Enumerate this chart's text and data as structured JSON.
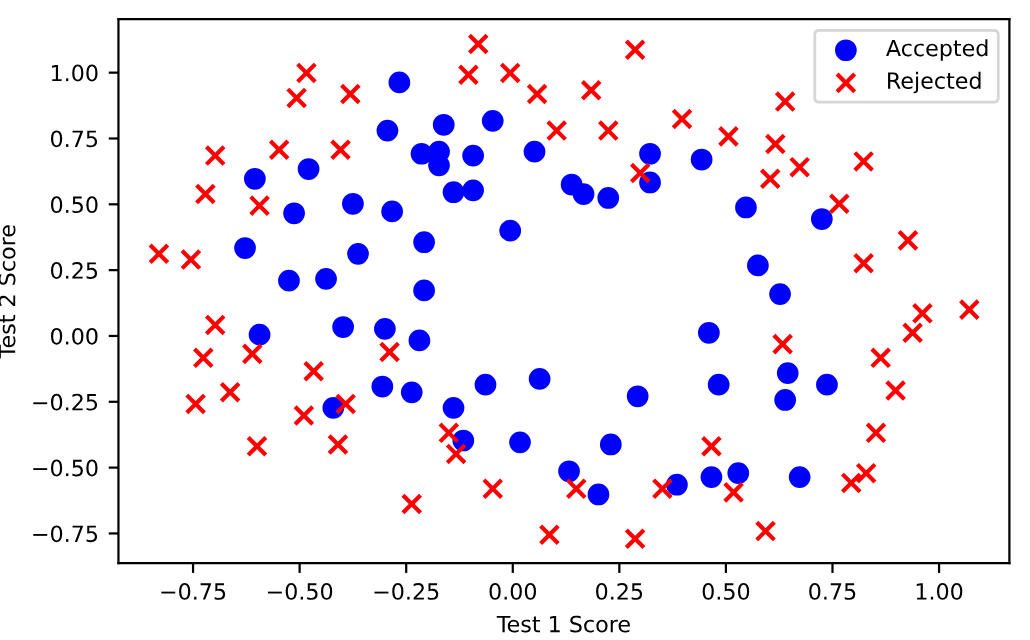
{
  "chart_data": {
    "type": "scatter",
    "xlabel": "Test 1 Score",
    "ylabel": "Test 2 Score",
    "legend": "top right",
    "grid": false,
    "xlim": [
      -0.925,
      1.165
    ],
    "ylim": [
      -0.863,
      1.203
    ],
    "xticks": [
      {
        "value": -0.75,
        "label": "−0.75"
      },
      {
        "value": -0.5,
        "label": "−0.50"
      },
      {
        "value": -0.25,
        "label": "−0.25"
      },
      {
        "value": 0,
        "label": "0.00"
      },
      {
        "value": 0.25,
        "label": "0.25"
      },
      {
        "value": 0.5,
        "label": "0.50"
      },
      {
        "value": 0.75,
        "label": "0.75"
      },
      {
        "value": 1,
        "label": "1.00"
      }
    ],
    "yticks": [
      {
        "value": -0.75,
        "label": "−0.75"
      },
      {
        "value": -0.5,
        "label": "−0.50"
      },
      {
        "value": -0.25,
        "label": "−0.25"
      },
      {
        "value": 0,
        "label": "0.00"
      },
      {
        "value": 0.25,
        "label": "0.25"
      },
      {
        "value": 0.5,
        "label": "0.50"
      },
      {
        "value": 0.75,
        "label": "0.75"
      },
      {
        "value": 1,
        "label": "1.00"
      }
    ],
    "series": [
      {
        "name": "Accepted",
        "color": "#0000ff",
        "marker": "circle",
        "x": [
          0.051,
          -0.093,
          -0.214,
          -0.375,
          -0.513,
          -0.525,
          -0.398,
          -0.306,
          0.017,
          0.132,
          0.385,
          0.529,
          0.639,
          0.737,
          0.547,
          0.322,
          0.166,
          -0.047,
          -0.173,
          -0.479,
          -0.605,
          -0.628,
          -0.594,
          -0.421,
          -0.116,
          0.201,
          0.466,
          0.673,
          -0.139,
          -0.294,
          -0.266,
          -0.162,
          -0.173,
          -0.283,
          -0.363,
          -0.3,
          -0.237,
          -0.064,
          0.063,
          0.23,
          0.293,
          0.483,
          0.645,
          0.46,
          0.627,
          0.575,
          0.725,
          0.224,
          0.443,
          0.322,
          0.138,
          -0.006,
          -0.093,
          -0.208,
          -0.208,
          -0.438,
          -0.219,
          -0.139
        ],
        "values": [
          0.7,
          0.685,
          0.692,
          0.502,
          0.466,
          0.21,
          0.034,
          -0.192,
          -0.404,
          -0.514,
          -0.565,
          -0.521,
          -0.243,
          -0.185,
          0.488,
          0.583,
          0.539,
          0.817,
          0.7,
          0.634,
          0.597,
          0.334,
          0.005,
          -0.273,
          -0.397,
          -0.602,
          -0.536,
          -0.536,
          0.546,
          0.78,
          0.963,
          0.802,
          0.648,
          0.473,
          0.312,
          0.027,
          -0.214,
          -0.185,
          -0.163,
          -0.412,
          -0.229,
          -0.185,
          -0.141,
          0.012,
          0.159,
          0.268,
          0.444,
          0.524,
          0.67,
          0.692,
          0.575,
          0.4,
          0.553,
          0.356,
          0.173,
          0.217,
          -0.017,
          -0.273
        ]
      },
      {
        "name": "Rejected",
        "color": "#ff0000",
        "marker": "cross",
        "x": [
          0.184,
          0.224,
          0.299,
          0.506,
          0.616,
          0.604,
          0.766,
          0.927,
          0.823,
          0.961,
          0.938,
          0.863,
          0.898,
          0.852,
          0.829,
          0.794,
          0.593,
          0.518,
          0.466,
          0.351,
          0.287,
          0.086,
          0.149,
          -0.133,
          -0.41,
          -0.392,
          -0.744,
          -0.698,
          -0.755,
          -0.698,
          -0.404,
          -0.381,
          -0.507,
          -0.548,
          0.103,
          0.057,
          -0.104,
          -0.081,
          0.287,
          0.397,
          0.639,
          0.823,
          0.673,
          1.071,
          -0.047,
          -0.237,
          -0.15,
          -0.49,
          -0.467,
          -0.289,
          -0.611,
          -0.663,
          -0.6,
          -0.726,
          -0.83,
          -0.721,
          -0.594,
          -0.484,
          -0.006,
          0.633
        ],
        "values": [
          0.933,
          0.78,
          0.619,
          0.758,
          0.729,
          0.597,
          0.502,
          0.363,
          0.276,
          0.086,
          0.012,
          -0.083,
          -0.207,
          -0.368,
          -0.521,
          -0.558,
          -0.741,
          -0.594,
          -0.419,
          -0.58,
          -0.77,
          -0.755,
          -0.58,
          -0.448,
          -0.412,
          -0.258,
          -0.258,
          0.042,
          0.29,
          0.685,
          0.707,
          0.919,
          0.904,
          0.707,
          0.78,
          0.919,
          0.992,
          1.109,
          1.087,
          0.824,
          0.89,
          0.663,
          0.641,
          0.1,
          -0.58,
          -0.638,
          -0.368,
          -0.302,
          -0.134,
          -0.061,
          -0.068,
          -0.214,
          -0.419,
          -0.083,
          0.312,
          0.539,
          0.495,
          0.999,
          0.999,
          -0.031
        ]
      }
    ]
  }
}
